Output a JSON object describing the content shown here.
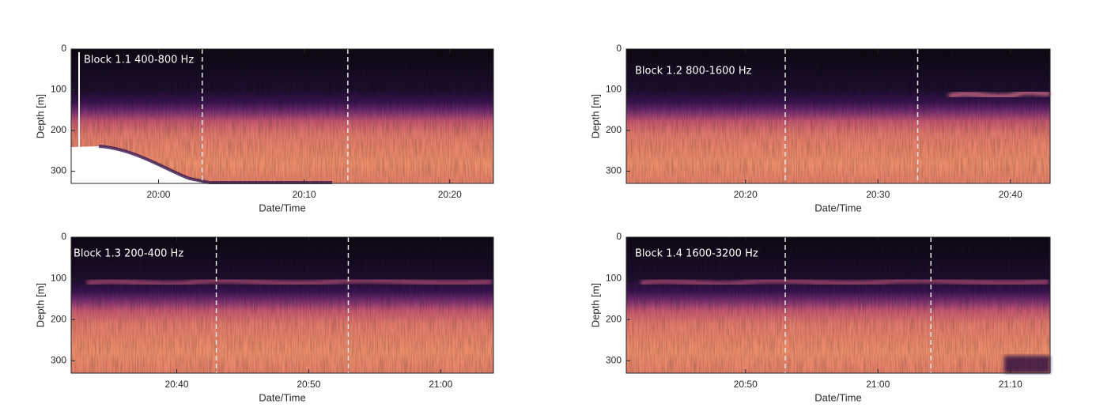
{
  "chart_data": [
    {
      "type": "echogram",
      "annotation": "Block 1.1 400-800 Hz",
      "xlabel": "Date/Time",
      "ylabel": "Depth [m]",
      "xlim": [
        "19:54",
        "20:23"
      ],
      "xticks": [
        "20:00",
        "20:10",
        "20:20"
      ],
      "ylim": [
        0,
        330
      ],
      "yticks": [
        0,
        100,
        200,
        300
      ],
      "y_inverted": true,
      "dashed_lines": [
        "20:03",
        "20:13"
      ],
      "dashed_color": "#e8e8e8"
    },
    {
      "type": "echogram",
      "annotation": "Block 1.2 800-1600 Hz",
      "xlabel": "Date/Time",
      "ylabel": "Depth [m]",
      "xlim": [
        "20:11",
        "20:43"
      ],
      "xticks": [
        "20:20",
        "20:30",
        "20:40"
      ],
      "ylim": [
        0,
        330
      ],
      "yticks": [
        0,
        100,
        200,
        300
      ],
      "y_inverted": true,
      "dashed_lines": [
        "20:23",
        "20:33"
      ],
      "dashed_color": "#e8e8e8"
    },
    {
      "type": "echogram",
      "annotation": "Block 1.3 200-400 Hz",
      "xlabel": "Date/Time",
      "ylabel": "Depth [m]",
      "xlim": [
        "20:32",
        "21:04"
      ],
      "xticks": [
        "20:40",
        "20:50",
        "21:00"
      ],
      "ylim": [
        0,
        330
      ],
      "yticks": [
        0,
        100,
        200,
        300
      ],
      "y_inverted": true,
      "dashed_lines": [
        "20:43",
        "20:53"
      ],
      "dashed_color": "#e8e8e8"
    },
    {
      "type": "echogram",
      "annotation": "Block 1.4 1600-3200 Hz",
      "xlabel": "Date/Time",
      "ylabel": "Depth [m]",
      "xlim": [
        "20:41",
        "21:13"
      ],
      "xticks": [
        "20:50",
        "21:00",
        "21:10"
      ],
      "ylim": [
        0,
        330
      ],
      "yticks": [
        0,
        100,
        200,
        300
      ],
      "y_inverted": true,
      "dashed_lines": [
        "20:53",
        "21:04"
      ],
      "dashed_color": "#e8e8e8"
    }
  ]
}
